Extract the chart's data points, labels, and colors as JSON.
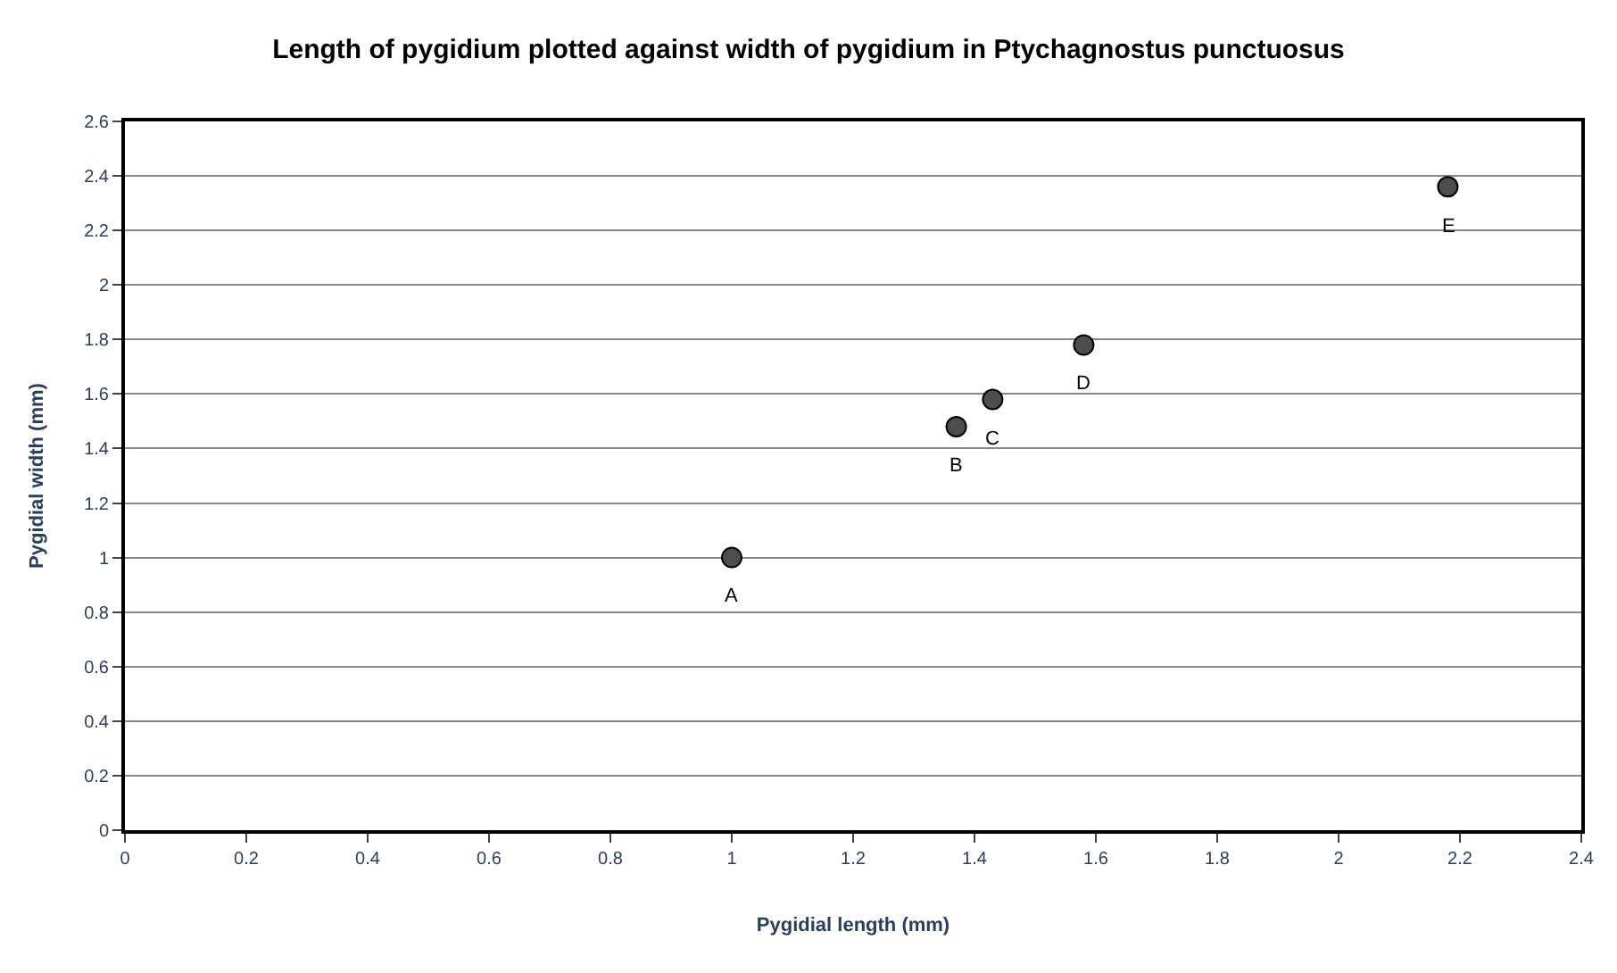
{
  "chart_data": {
    "type": "scatter",
    "title": "Length of pygidium plotted against width of pygidium in Ptychagnostus punctuosus",
    "xlabel": "Pygidial length (mm)",
    "ylabel": "Pygidial width (mm)",
    "x": [
      1.0,
      1.37,
      1.43,
      1.58,
      2.18
    ],
    "series": [
      {
        "color": "#4d4d4d",
        "values": [
          1.0,
          1.48,
          1.58,
          1.78,
          2.36
        ]
      }
    ],
    "annotations": [
      {
        "text": "A",
        "x": 1.0,
        "y": 1.0
      },
      {
        "text": "B",
        "x": 1.37,
        "y": 1.48
      },
      {
        "text": "C",
        "x": 1.43,
        "y": 1.58
      },
      {
        "text": "D",
        "x": 1.58,
        "y": 1.78
      },
      {
        "text": "E",
        "x": 2.18,
        "y": 2.36
      }
    ],
    "xlim": [
      0,
      2.4
    ],
    "xticks": [
      0,
      0.2,
      0.4,
      0.6,
      0.8,
      1,
      1.2,
      1.4,
      1.6,
      1.8,
      2,
      2.2,
      2.4
    ],
    "ylim": [
      0,
      2.6
    ],
    "yticks": [
      0,
      0.2,
      0.4,
      0.6,
      0.8,
      1,
      1.2,
      1.4,
      1.6,
      1.8,
      2,
      2.2,
      2.4,
      2.6
    ],
    "grid": "y",
    "marker": "circle",
    "legend": false
  }
}
